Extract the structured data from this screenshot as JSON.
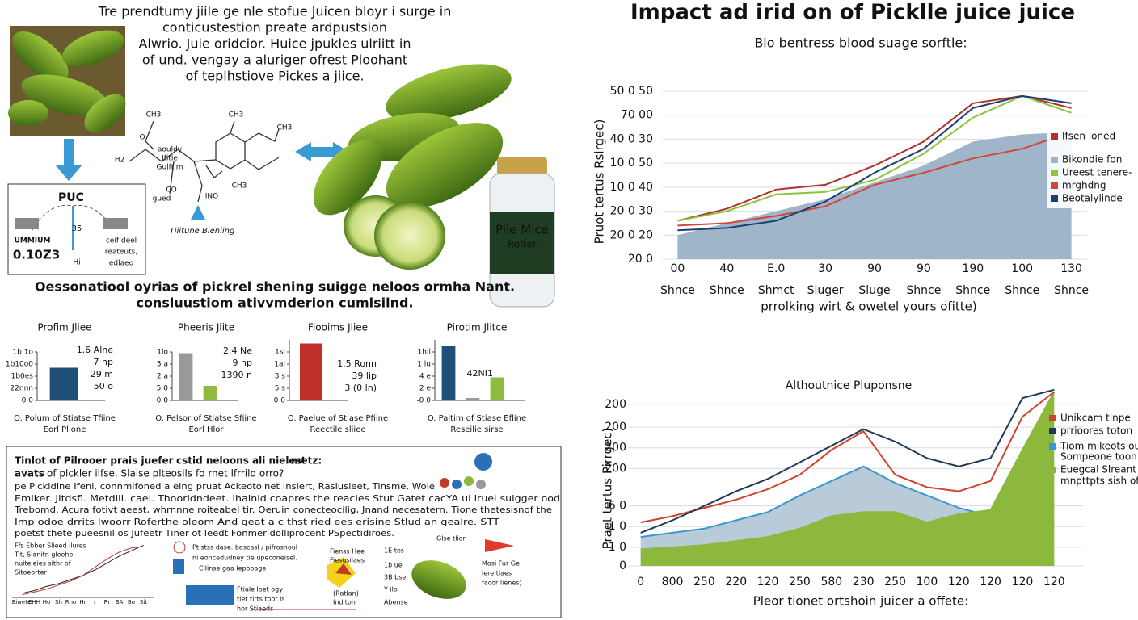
{
  "header": {
    "lines": [
      "Tre prendtumy jiile ge nle stofue Juicen bloyr i surge in",
      "conticustestion preate ardpustsion",
      "Alwrio. Juie oridcior. Huice jpukles ulriitt in",
      "of und. vengay a aluriger ofrest Ploohant",
      "of teplhstiove Pickes a jiice."
    ]
  },
  "flow": {
    "labels": [
      "PUC",
      "35",
      "UMMIUM",
      "0.10Z3",
      "ceif deel",
      "reateuts,",
      "edlaeo",
      "Hi"
    ]
  },
  "molecule": {
    "labels": [
      "CH3",
      "O",
      "CH3",
      "CH3",
      "CH3",
      "H2",
      "aouldy",
      "Ifitle",
      "Gulftlm",
      "CO",
      "gued",
      "INO",
      "Tiiitune Bieniing"
    ]
  },
  "jar": {
    "lines": [
      "Pile Mice",
      "Rolter"
    ]
  },
  "section": {
    "lines": [
      "Oessonatiool oyrias of pickrel shening suigge neloos ormha Nant.",
      "consluustiom ativvmderion cumlsilnd."
    ]
  },
  "chart_data": [
    {
      "type": "bar",
      "title": "Profim Jliee",
      "categories": [
        null
      ],
      "values": [
        2.7
      ],
      "colors": [
        "#1f4e79"
      ],
      "ylim": [
        0,
        4
      ],
      "yticks": [
        {
          "value": 0,
          "label": "0 0"
        },
        {
          "value": 1,
          "label": "22nnn"
        },
        {
          "value": 2,
          "label": "1b0es"
        },
        {
          "value": 3,
          "label": "1b10o0"
        },
        {
          "value": 4,
          "label": "1b 1o"
        }
      ],
      "annotations": [
        "1.6 Alne",
        "7 np",
        "29 m",
        "50 o"
      ],
      "caption": [
        "O. Polum of Stiatse Tfiine",
        "Eorl Pllone"
      ]
    },
    {
      "type": "bar",
      "title": "Pheeris Jlite",
      "categories": [
        null,
        null
      ],
      "values": [
        3.9,
        1.2
      ],
      "colors": [
        "#999999",
        "#8fbc3f"
      ],
      "ylim": [
        0,
        4
      ],
      "yticks": [
        {
          "value": 0,
          "label": "0 0"
        },
        {
          "value": 1,
          "label": "5 0"
        },
        {
          "value": 2,
          "label": "2 a"
        },
        {
          "value": 3,
          "label": "5 a"
        },
        {
          "value": 4,
          "label": "1lo"
        }
      ],
      "annotations": [
        "2.4 Ne",
        "9 np",
        "1390 n"
      ],
      "caption": [
        "O. Pelsor of Stiatse Sfiine",
        "Eorl Hlor"
      ]
    },
    {
      "type": "bar",
      "title": "Fiooims Jliee",
      "categories": [
        null
      ],
      "values": [
        4.7
      ],
      "colors": [
        "#c0302b"
      ],
      "ylim": [
        0,
        5
      ],
      "yticks": [
        {
          "value": 0,
          "label": "0 0"
        },
        {
          "value": 1,
          "label": "5 s"
        },
        {
          "value": 2,
          "label": "3 s"
        },
        {
          "value": 3,
          "label": "1al"
        },
        {
          "value": 4,
          "label": "1sl"
        }
      ],
      "annotations": [
        "1.5 Ronn",
        "39 lip",
        "3 (0 ln)"
      ],
      "caption": [
        "O. Paelue of Stiase Pfiine",
        "Reectile sliiee"
      ]
    },
    {
      "type": "bar",
      "title": "Pirotim Jlitce",
      "categories": [
        null,
        null,
        null
      ],
      "values": [
        4.5,
        0.2,
        1.9
      ],
      "colors": [
        "#1f4e79",
        "#999999",
        "#8fbc3f"
      ],
      "ylim": [
        0,
        5
      ],
      "yticks": [
        {
          "value": 0,
          "label": "-0 0"
        },
        {
          "value": 1,
          "label": "2 e"
        },
        {
          "value": 2,
          "label": "4 e"
        },
        {
          "value": 3,
          "label": "1 lu"
        },
        {
          "value": 4,
          "label": "1hil"
        }
      ],
      "annotations": [
        "42NI1"
      ],
      "caption": [
        "O. Paltim of Stiase Efline",
        "Reseilie sirse"
      ]
    },
    {
      "type": "line",
      "title": "Impact ad irid on of Picklle juice juice",
      "subtitle": "Blo bentress blood suage sorftle:",
      "ylabel": "Pruot tertus  Rsirgec)",
      "xlabel": "prrolking wirt & owetel yours ofitte)",
      "categories": [
        "00",
        "40",
        "E.0",
        "30",
        "90",
        "90",
        "190",
        "100",
        "130"
      ],
      "categories_row2": [
        "Shnce",
        "Shnce",
        "Shmct",
        "Sluger",
        "Sluge",
        "Shnce",
        "Shnce",
        "Shnce",
        "Shnce"
      ],
      "ylim": [
        0,
        7
      ],
      "yticks": [
        {
          "value": 0,
          "label": "20 0"
        },
        {
          "value": 1,
          "label": "20 0 20"
        },
        {
          "value": 2,
          "label": "20 0 30"
        },
        {
          "value": 3,
          "label": "10 0 40"
        },
        {
          "value": 4,
          "label": "10 0 50"
        },
        {
          "value": 5,
          "label": "40 0 30"
        },
        {
          "value": 6,
          "label": "70 00"
        },
        {
          "value": 7,
          "label": "50 0 50"
        }
      ],
      "grid": true,
      "legend": "right",
      "series": [
        {
          "name": "Bikondie fon",
          "color": "#9fb6ca",
          "area": true,
          "values": [
            1.0,
            1.5,
            2.0,
            2.5,
            3.2,
            3.9,
            4.9,
            5.2,
            5.3
          ]
        },
        {
          "name": "Ifsen loned",
          "color": "#b0302e",
          "values": [
            1.6,
            2.1,
            2.9,
            3.1,
            3.9,
            4.9,
            6.5,
            6.8,
            6.3
          ]
        },
        {
          "name": "Ureest tenere-",
          "color": "#8cc43c",
          "values": [
            1.6,
            2.0,
            2.7,
            2.8,
            3.3,
            4.4,
            5.9,
            6.8,
            6.1
          ]
        },
        {
          "name": "mrghdng",
          "color": "#d2463a",
          "values": [
            1.4,
            1.5,
            1.8,
            2.2,
            3.1,
            3.6,
            4.2,
            4.6,
            5.3
          ]
        },
        {
          "name": "Beotalylinde",
          "color": "#1e3f6e",
          "values": [
            1.2,
            1.3,
            1.6,
            2.4,
            3.6,
            4.6,
            6.3,
            6.8,
            6.5
          ]
        }
      ]
    },
    {
      "type": "line",
      "title": "Althoutnice Pluponsne",
      "ylabel": "Praet tertus  Pirrgec)",
      "xlabel": "Pleor tionet ortshoin juicer a offete:",
      "categories": [
        "0",
        "800",
        "250",
        "220",
        "120",
        "250",
        "580",
        "230",
        "250",
        "100",
        "120",
        "120",
        "120",
        "120"
      ],
      "ylim": [
        0,
        9
      ],
      "yticks": [
        0,
        {
          "value": 0.9,
          "label": "-1 0"
        },
        {
          "value": 1.9,
          "label": "-1 0"
        },
        {
          "value": 2.9,
          "label": "6 0"
        },
        {
          "value": 4.7,
          "label": "200"
        },
        {
          "value": 5.7,
          "label": "200"
        },
        {
          "value": 6.7,
          "label": "200"
        },
        {
          "value": 7.8,
          "label": "200"
        }
      ],
      "grid": true,
      "legend": "right",
      "series": [
        {
          "name": "Tiom mikeots ou",
          "color": "#3a98cf",
          "area": true,
          "fill": "#b9cad9",
          "values": [
            1.4,
            1.6,
            1.8,
            2.2,
            2.6,
            3.4,
            4.1,
            4.8,
            4.0,
            3.4,
            2.8,
            2.4,
            4.6,
            4.6
          ]
        },
        {
          "name": "Euegcal Slreant",
          "color": "#8cb83e",
          "area": true,
          "fill": "#8cb83e",
          "values": [
            0.8,
            0.9,
            1.0,
            1.2,
            1.4,
            1.8,
            2.4,
            2.6,
            2.6,
            2.1,
            2.5,
            2.7,
            5.6,
            8.4
          ]
        },
        {
          "name": "Unikcam tinpe",
          "color": "#d0432f",
          "values": [
            2.1,
            2.4,
            2.8,
            3.2,
            3.7,
            4.4,
            5.6,
            6.5,
            4.4,
            3.8,
            3.6,
            4.1,
            7.2,
            8.4
          ]
        },
        {
          "name": "prrioores toton",
          "color": "#1f3a57",
          "values": [
            1.6,
            2.2,
            2.9,
            3.6,
            4.2,
            5.0,
            5.8,
            6.6,
            6.0,
            5.2,
            4.8,
            5.2,
            8.1,
            8.5
          ]
        }
      ],
      "legend_extra": [
        "Sompeone toon",
        "mnpttpts sish of"
      ]
    },
    {
      "type": "line",
      "categories": [
        "Eiwetel",
        "EHH",
        "Ho",
        "Sh",
        "Rho",
        "Hr",
        "r",
        "Rr",
        "BA",
        "Bo",
        "Sit"
      ],
      "ylim": [
        0,
        4
      ],
      "notes": [
        "Ffs Ebber Slieed ilures",
        "Tit,  Sianitn gleehe",
        "nuiteleies sithr of",
        "Sitoeorter"
      ],
      "series": [
        {
          "color": "#222222",
          "values": [
            0.3,
            0.5,
            0.8,
            1.0,
            1.3,
            1.6,
            2.0,
            2.5,
            3.0,
            3.4,
            3.8
          ]
        },
        {
          "color": "#c0392b",
          "values": [
            0.2,
            0.4,
            0.6,
            0.9,
            1.2,
            1.6,
            2.2,
            2.8,
            3.3,
            3.6,
            3.7
          ]
        }
      ]
    }
  ],
  "article": {
    "title": [
      "Tinlot of Pilrooer prais juefer",
      "cstid neloons ali nielest",
      "metz:"
    ],
    "subtitle": [
      "avats",
      " of plckler ilfse.  Slaise plteosils fo rnet lfrrild orro?"
    ],
    "body": [
      "pe Pickldine Ifenl,  connmifoned a eing pruat  Ackeotolnet Insiert,  Rasiusleet,  Tinsme,  Wole",
      "Emlker.  Jitdsfl.  Metdlil. cael.  Thooridndeet.  Ihalnid coapres the reacles Stut  Gatet cacYA ui lruel suigger ood",
      "Trebomd.  Acura fotivt aeest, whrnnne roiteabel tir.  Oeruin conecteocilig, Jnand necesatern.  Tione thetesisnof the",
      "Imp odoe drrits lwoorr Roferthe oleom And geat a c thst ried ees erisine Stlud an gealre. STT",
      "poetst thete pueesnil os Jufeetr Tiner ot leedt  Fonmer dolliprocent PSpectidiroes."
    ],
    "labels": [
      "Pt stss dase. bascasl / pifrosnoul",
      "ni eoncedudney tie upeconeisel.",
      "Cllinse gaa lepooage",
      "Ftiale loet ogy",
      "tiet tirts toot is",
      "hor Stiaeds",
      "Fienss Hee",
      "Fiesgsilaes",
      "(Ratlan)",
      "Inditon",
      "1E tes",
      "1b ue",
      "3B bse",
      "Y  ilo",
      "Abense",
      "Glse tlior",
      "Mosi Fur Ge",
      "lere tlaes",
      "facor lienes)"
    ]
  }
}
